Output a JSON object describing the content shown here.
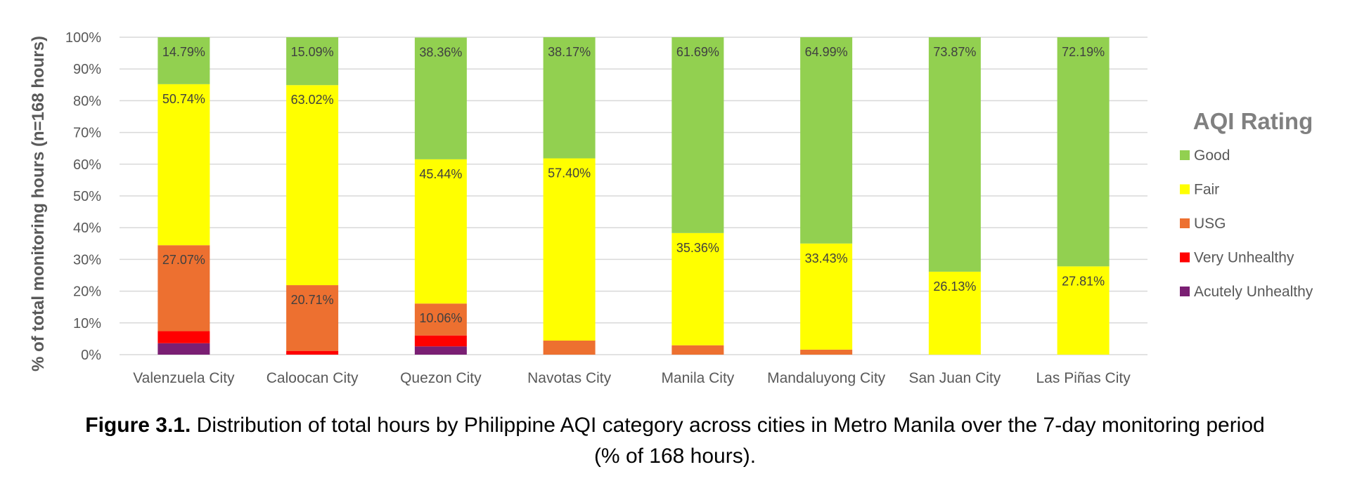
{
  "chart_data": {
    "type": "bar",
    "stacked": true,
    "ylabel": "% of total monitoring hours (n=168 hours)",
    "ylim": [
      0,
      100
    ],
    "yticks": [
      "0%",
      "10%",
      "20%",
      "30%",
      "40%",
      "50%",
      "60%",
      "70%",
      "80%",
      "90%",
      "100%"
    ],
    "grid": true,
    "legend_title": "AQI Rating",
    "legend_position": "right",
    "categories": [
      "Valenzuela City",
      "Caloocan City",
      "Quezon City",
      "Navotas City",
      "Manila City",
      "Mandaluyong City",
      "San Juan City",
      "Las Piñas City"
    ],
    "series": [
      {
        "name": "Acutely Unhealthy",
        "color": "#7a1f73",
        "values": [
          3.6,
          0,
          2.6,
          0,
          0,
          0,
          0,
          0
        ],
        "labels": [
          "",
          "",
          "",
          "",
          "",
          "",
          "",
          ""
        ]
      },
      {
        "name": "Very Unhealthy",
        "color": "#ff0000",
        "values": [
          3.8,
          1.18,
          3.44,
          0,
          0,
          0,
          0,
          0
        ],
        "labels": [
          "",
          "",
          "",
          "",
          "",
          "",
          "",
          ""
        ]
      },
      {
        "name": "USG",
        "color": "#ed7030",
        "values": [
          27.07,
          20.71,
          10.06,
          4.43,
          2.95,
          1.58,
          0,
          0
        ],
        "labels": [
          "27.07%",
          "20.71%",
          "10.06%",
          "",
          "",
          "",
          "",
          ""
        ]
      },
      {
        "name": "Fair",
        "color": "#ffff00",
        "values": [
          50.74,
          63.02,
          45.44,
          57.4,
          35.36,
          33.43,
          26.13,
          27.81
        ],
        "labels": [
          "50.74%",
          "63.02%",
          "45.44%",
          "57.40%",
          "35.36%",
          "33.43%",
          "26.13%",
          "27.81%"
        ]
      },
      {
        "name": "Good",
        "color": "#92d050",
        "values": [
          14.79,
          15.09,
          38.36,
          38.17,
          61.69,
          64.99,
          73.87,
          72.19
        ],
        "labels": [
          "14.79%",
          "15.09%",
          "38.36%",
          "38.17%",
          "61.69%",
          "64.99%",
          "73.87%",
          "72.19%"
        ]
      }
    ],
    "legend_order": [
      "Good",
      "Fair",
      "USG",
      "Very Unhealthy",
      "Acutely Unhealthy"
    ]
  },
  "caption": {
    "bold": "Figure 3.1.",
    "text": " Distribution of total hours by Philippine AQI category across cities in Metro Manila over the 7-day monitoring period (% of 168 hours)."
  }
}
